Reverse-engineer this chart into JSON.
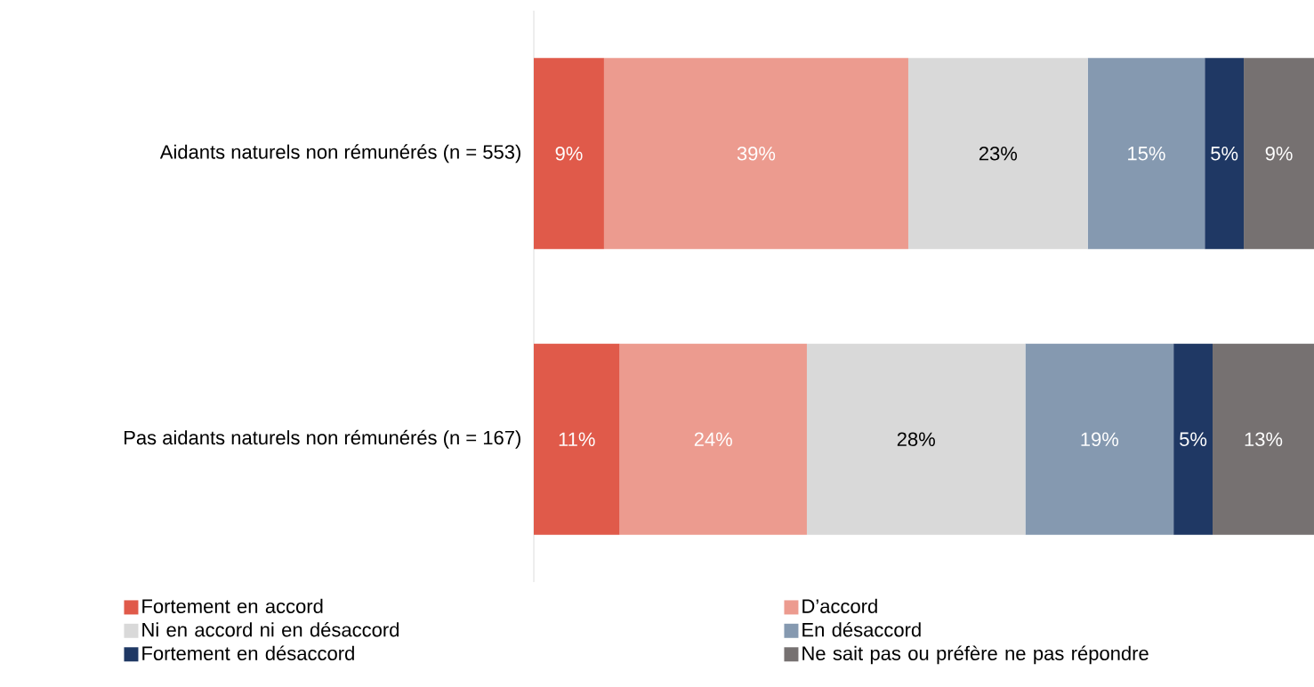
{
  "chart_data": {
    "type": "bar",
    "orientation": "horizontal",
    "stacked": true,
    "legend": "bottom",
    "categories": [
      "Aidants naturels non rémunérés (n = 553)",
      "Pas aidants naturels non rémunérés (n = 167)"
    ],
    "series": [
      {
        "name": "Fortement en accord",
        "color": "#e05a4a",
        "values": [
          9,
          11
        ],
        "value_labels": [
          "9%",
          "11%"
        ]
      },
      {
        "name": "D’accord",
        "color": "#ec9b8f",
        "values": [
          39,
          24
        ],
        "value_labels": [
          "39%",
          "24%"
        ]
      },
      {
        "name": "Ni en accord ni en désaccord",
        "color": "#d9d9d9",
        "values": [
          23,
          28
        ],
        "value_labels": [
          "23%",
          "28%"
        ]
      },
      {
        "name": "En désaccord",
        "color": "#8599b0",
        "values": [
          15,
          19
        ],
        "value_labels": [
          "15%",
          "19%"
        ]
      },
      {
        "name": "Fortement en désaccord",
        "color": "#1f3864",
        "values": [
          5,
          5
        ],
        "value_labels": [
          "5%",
          "5%"
        ]
      },
      {
        "name": "Ne sait pas ou préfère ne pas répondre",
        "color": "#767171",
        "values": [
          9,
          13
        ],
        "value_labels": [
          "9%",
          "13%"
        ]
      }
    ]
  }
}
